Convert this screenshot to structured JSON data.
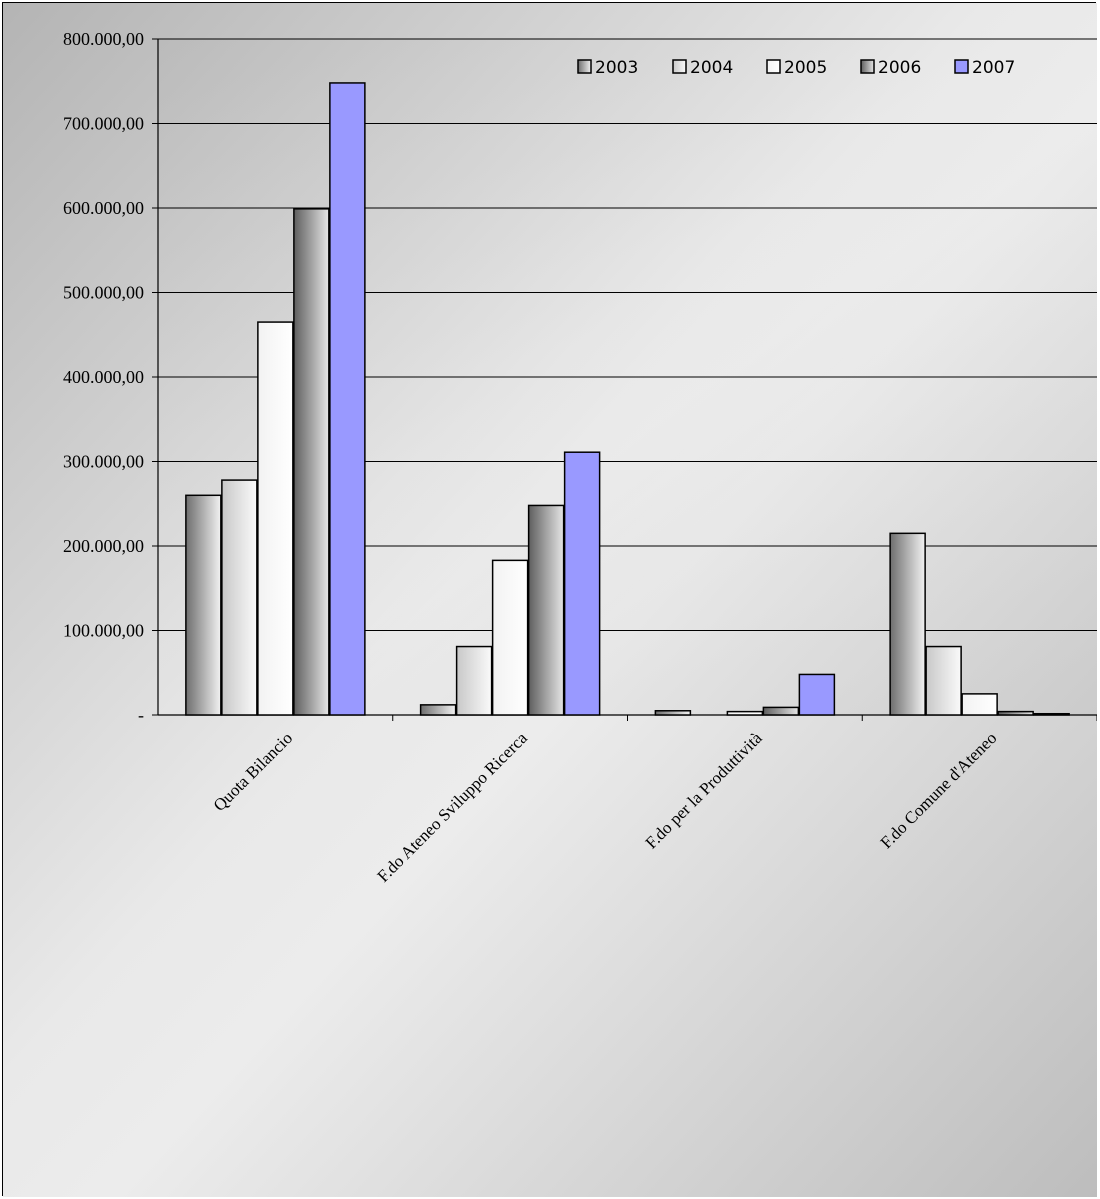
{
  "chart_data": {
    "type": "bar",
    "categories": [
      "Quota Bilancio",
      "F.do Ateneo Sviluppo Ricerca",
      "F.do per la Produttività",
      "F.do Comune d'Ateneo"
    ],
    "series": [
      {
        "name": "2003",
        "values": [
          260000,
          12000,
          5000,
          215000
        ],
        "color": "#8c8c8c"
      },
      {
        "name": "2004",
        "values": [
          278000,
          81000,
          0,
          81000
        ],
        "color": "#e0e0e0"
      },
      {
        "name": "2005",
        "values": [
          465000,
          183000,
          4000,
          25000
        ],
        "color": "#ffffff"
      },
      {
        "name": "2006",
        "values": [
          599000,
          248000,
          9000,
          4000
        ],
        "color": "#9a9a9a"
      },
      {
        "name": "2007",
        "values": [
          748000,
          311000,
          48000,
          1500
        ],
        "color": "#9999ff"
      }
    ],
    "ylim": [
      0,
      800000
    ],
    "yticks": [
      0,
      100000,
      200000,
      300000,
      400000,
      500000,
      600000,
      700000,
      800000
    ],
    "ytick_labels": [
      "-",
      "100.000,00",
      "200.000,00",
      "300.000,00",
      "400.000,00",
      "500.000,00",
      "600.000,00",
      "700.000,00",
      "800.000,00"
    ],
    "grid": true,
    "legend_position": "top-right",
    "title": "",
    "xlabel": "",
    "ylabel": ""
  }
}
